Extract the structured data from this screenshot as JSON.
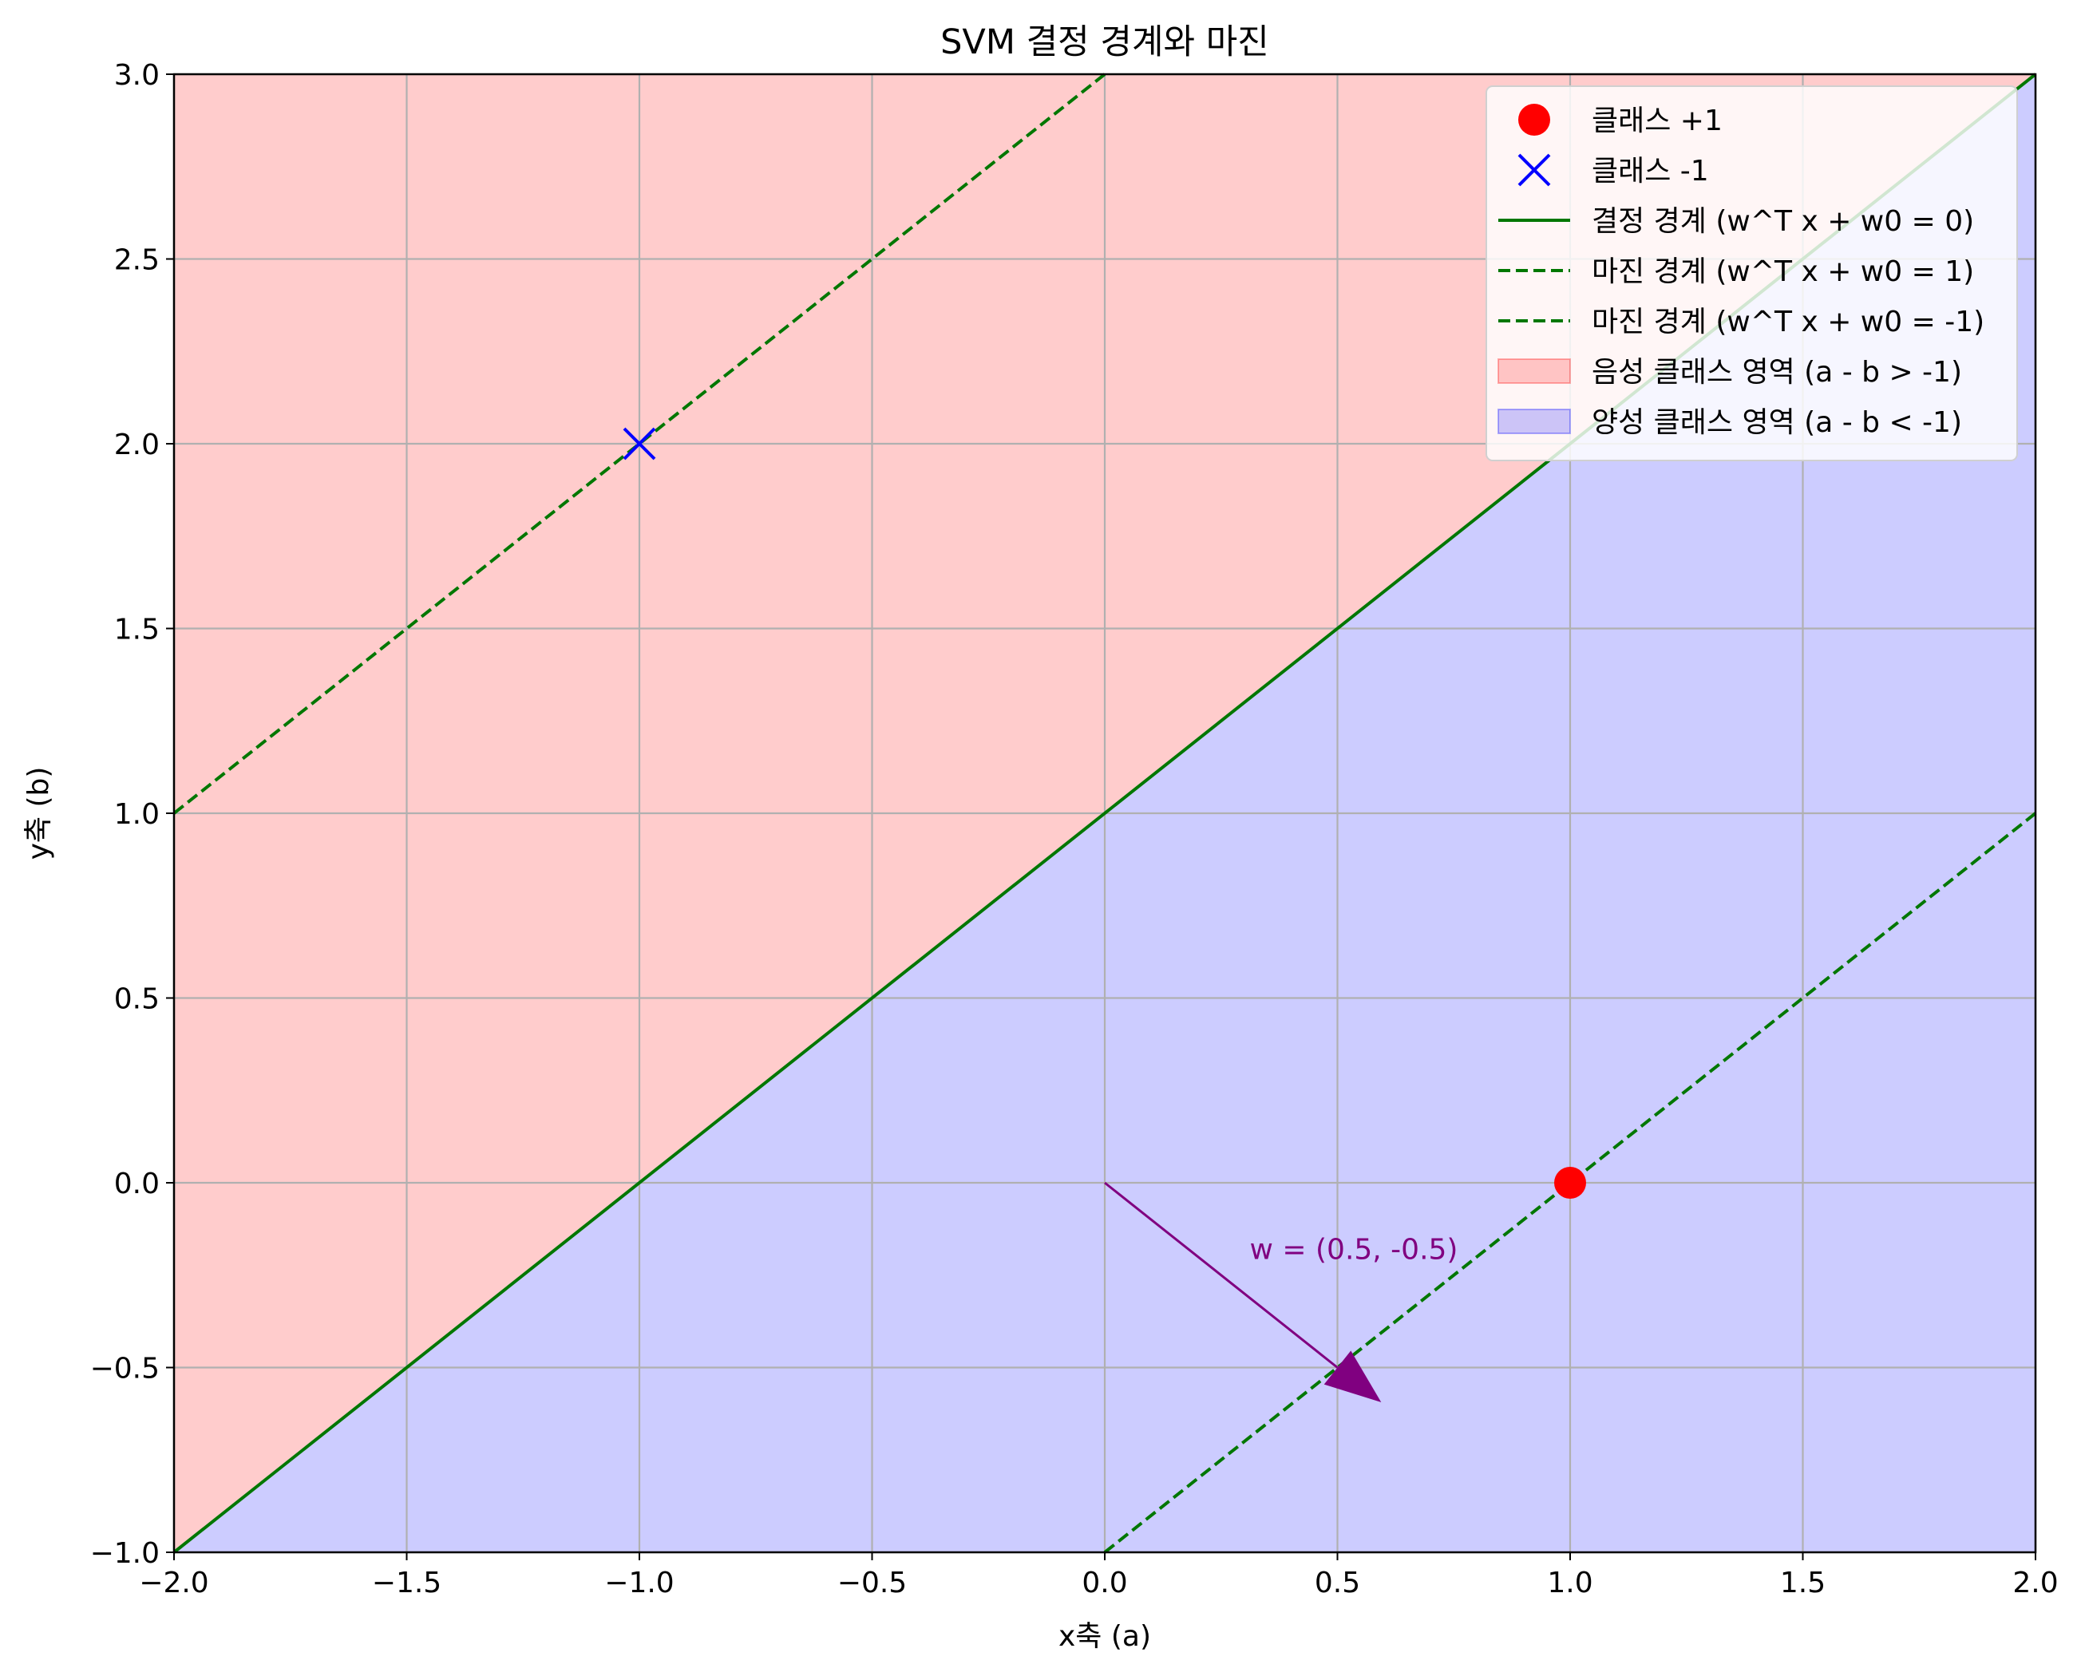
{
  "chart_data": {
    "type": "scatter",
    "title": "SVM 결정 경계와 마진",
    "xlabel": "x축 (a)",
    "ylabel": "y축 (b)",
    "xlim": [
      -2.0,
      2.0
    ],
    "ylim": [
      -1.0,
      3.0
    ],
    "xticks": [
      -2.0,
      -1.5,
      -1.0,
      -0.5,
      0.0,
      0.5,
      1.0,
      1.5,
      2.0
    ],
    "yticks": [
      -1.0,
      -0.5,
      0.0,
      0.5,
      1.0,
      1.5,
      2.0,
      2.5,
      3.0
    ],
    "xtick_labels": [
      "−2.0",
      "−1.5",
      "−1.0",
      "−0.5",
      "0.0",
      "0.5",
      "1.0",
      "1.5",
      "2.0"
    ],
    "ytick_labels": [
      "−1.0",
      "−0.5",
      "0.0",
      "0.5",
      "1.0",
      "1.5",
      "2.0",
      "2.5",
      "3.0"
    ],
    "grid": true,
    "legend_position": "top-right",
    "regions": [
      {
        "name": "음성 클래스 영역 (a - b > -1)",
        "color": "#ff0000",
        "opacity": 0.2,
        "side": "above",
        "boundary": {
          "slope": 1,
          "intercept": 1
        }
      },
      {
        "name": "양성 클래스 영역 (a - b < -1)",
        "color": "#0000ff",
        "opacity": 0.2,
        "side": "below",
        "boundary": {
          "slope": 1,
          "intercept": 1
        }
      }
    ],
    "lines": [
      {
        "name": "결정 경계 (w^T x + w0 = 0)",
        "slope": 1,
        "intercept": 1,
        "color": "#007700",
        "dashed": false
      },
      {
        "name": "마진 경계 (w^T x + w0 = 1)",
        "slope": 1,
        "intercept": 3,
        "color": "#007700",
        "dashed": true
      },
      {
        "name": "마진 경계 (w^T x + w0 = -1)",
        "slope": 1,
        "intercept": -1,
        "color": "#007700",
        "dashed": true
      }
    ],
    "series": [
      {
        "name": "클래스 +1",
        "marker": "circle",
        "color": "#ff0000",
        "points": [
          [
            1.0,
            0.0
          ]
        ]
      },
      {
        "name": "클래스 -1",
        "marker": "x",
        "color": "#0000ff",
        "points": [
          [
            -1.0,
            2.0
          ]
        ]
      }
    ],
    "arrow": {
      "from": [
        0.0,
        0.0
      ],
      "to": [
        0.5,
        -0.5
      ],
      "color": "#800080"
    },
    "annotations": [
      {
        "text": "w = (0.5, -0.5)",
        "x": 0.5,
        "y": -0.18,
        "color": "#800080"
      }
    ],
    "legend": [
      {
        "label": "클래스 +1",
        "kind": "circle",
        "color": "#ff0000"
      },
      {
        "label": "클래스 -1",
        "kind": "x",
        "color": "#0000ff"
      },
      {
        "label": "결정 경계 (w^T x + w0 = 0)",
        "kind": "line",
        "color": "#007700"
      },
      {
        "label": "마진 경계 (w^T x + w0 = 1)",
        "kind": "dash",
        "color": "#007700"
      },
      {
        "label": "마진 경계 (w^T x + w0 = -1)",
        "kind": "dash",
        "color": "#007700"
      },
      {
        "label": "음성 클래스 영역 (a - b > -1)",
        "kind": "patch-red",
        "color": "#ff0000"
      },
      {
        "label": "양성 클래스 영역 (a - b < -1)",
        "kind": "patch-blue",
        "color": "#0000ff"
      }
    ]
  }
}
